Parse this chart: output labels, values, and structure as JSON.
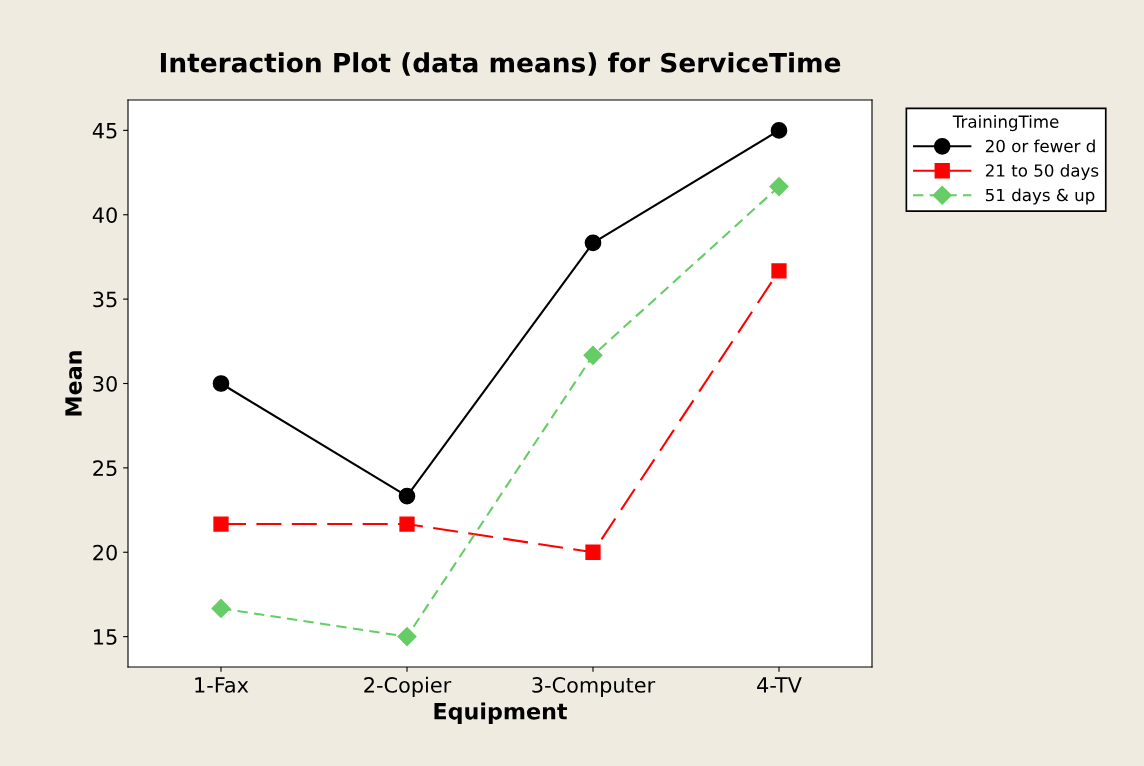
{
  "chart_data": {
    "type": "line",
    "title": "Interaction Plot (data means) for ServiceTime",
    "xlabel": "Equipment",
    "ylabel": "Mean",
    "legend_title": "TrainingTime",
    "categories": [
      "1-Fax",
      "2-Copier",
      "3-Computer",
      "4-TV"
    ],
    "series": [
      {
        "name": "20 or fewer d",
        "color": "#000000",
        "marker": "circle",
        "line_style": "solid",
        "values": [
          30,
          23.33,
          38.33,
          45
        ]
      },
      {
        "name": "21 to 50 days",
        "color": "#ff0000",
        "marker": "square",
        "line_style": "dashed",
        "values": [
          21.67,
          21.67,
          20,
          36.67
        ]
      },
      {
        "name": "51 days & up",
        "color": "#66cc66",
        "marker": "diamond",
        "line_style": "dotted",
        "values": [
          16.67,
          15,
          31.67,
          41.67
        ]
      }
    ],
    "ylim": [
      13.2,
      46.8
    ],
    "yticks": [
      15,
      20,
      25,
      30,
      35,
      40,
      45
    ],
    "grid": false,
    "legend": "right"
  }
}
